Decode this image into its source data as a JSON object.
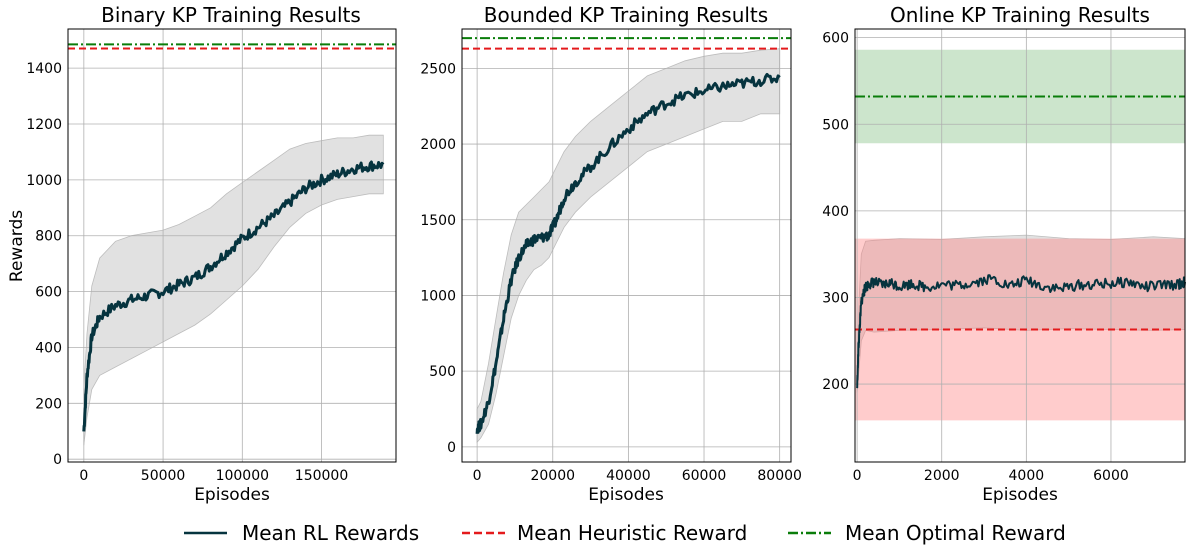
{
  "colors": {
    "rl": "#06343f",
    "heuristic": "#e41a1c",
    "optimal": "#0a7d0a",
    "band_gray": "#c8c8c8",
    "band_green": "#7fbf7f",
    "band_red": "#ff8080",
    "grid": "#b0b0b0"
  },
  "legend": {
    "placement": "bottom-center",
    "items": [
      {
        "label": "Mean RL Rewards",
        "style": "solid",
        "color_key": "rl"
      },
      {
        "label": "Mean Heuristic Reward",
        "style": "dashed",
        "color_key": "heuristic"
      },
      {
        "label": "Mean Optimal Reward",
        "style": "dashdot",
        "color_key": "optimal"
      }
    ]
  },
  "chart_data": [
    {
      "type": "line",
      "title": "Binary KP Training Results",
      "xlabel": "Episodes",
      "ylabel": "Rewards",
      "xlim": [
        -10000,
        197000
      ],
      "ylim": [
        -10,
        1540
      ],
      "xticks": [
        0,
        50000,
        100000,
        150000
      ],
      "yticks": [
        0,
        200,
        400,
        600,
        800,
        1000,
        1200,
        1400
      ],
      "grid": true,
      "heuristic": 1470,
      "optimal": 1485,
      "series": [
        {
          "role": "mean",
          "x": [
            0,
            2000,
            5000,
            10000,
            20000,
            30000,
            40000,
            50000,
            60000,
            70000,
            80000,
            90000,
            100000,
            110000,
            120000,
            130000,
            140000,
            150000,
            160000,
            170000,
            180000,
            189000
          ],
          "y": [
            100,
            300,
            440,
            510,
            550,
            570,
            585,
            600,
            625,
            650,
            690,
            740,
            790,
            830,
            870,
            920,
            970,
            1000,
            1020,
            1040,
            1050,
            1055
          ]
        }
      ],
      "bands": [
        {
          "color_key": "band_gray",
          "x": [
            0,
            2000,
            5000,
            10000,
            20000,
            30000,
            40000,
            50000,
            60000,
            70000,
            80000,
            90000,
            100000,
            110000,
            120000,
            130000,
            140000,
            150000,
            160000,
            170000,
            180000,
            189000
          ],
          "lower": [
            50,
            150,
            250,
            300,
            330,
            360,
            390,
            420,
            450,
            480,
            520,
            570,
            620,
            680,
            760,
            830,
            880,
            910,
            930,
            940,
            950,
            950
          ],
          "upper": [
            250,
            450,
            620,
            720,
            780,
            800,
            810,
            820,
            840,
            870,
            900,
            950,
            990,
            1030,
            1070,
            1110,
            1130,
            1140,
            1150,
            1150,
            1160,
            1160
          ]
        }
      ]
    },
    {
      "type": "line",
      "title": "Bounded KP Training Results",
      "xlabel": "Episodes",
      "ylabel": "",
      "xlim": [
        -4000,
        83000
      ],
      "ylim": [
        -100,
        2760
      ],
      "xticks": [
        0,
        20000,
        40000,
        60000,
        80000
      ],
      "yticks": [
        0,
        500,
        1000,
        1500,
        2000,
        2500
      ],
      "grid": true,
      "heuristic": 2630,
      "optimal": 2700,
      "series": [
        {
          "role": "mean",
          "x": [
            0,
            1000,
            3000,
            5000,
            7000,
            9000,
            11000,
            13000,
            15000,
            17000,
            19000,
            21000,
            23000,
            26000,
            30000,
            35000,
            40000,
            45000,
            50000,
            55000,
            60000,
            65000,
            70000,
            75000,
            80000
          ],
          "y": [
            120,
            150,
            300,
            550,
            850,
            1100,
            1250,
            1330,
            1370,
            1380,
            1400,
            1500,
            1650,
            1750,
            1850,
            1980,
            2100,
            2200,
            2270,
            2320,
            2350,
            2380,
            2400,
            2420,
            2440
          ]
        }
      ],
      "bands": [
        {
          "color_key": "band_gray",
          "x": [
            0,
            1000,
            3000,
            5000,
            7000,
            9000,
            11000,
            13000,
            15000,
            17000,
            19000,
            21000,
            23000,
            26000,
            30000,
            35000,
            40000,
            45000,
            50000,
            55000,
            60000,
            65000,
            70000,
            75000,
            80000
          ],
          "lower": [
            30,
            60,
            150,
            350,
            600,
            850,
            1000,
            1100,
            1170,
            1200,
            1250,
            1350,
            1450,
            1550,
            1650,
            1750,
            1850,
            1950,
            2000,
            2050,
            2100,
            2150,
            2150,
            2200,
            2200
          ],
          "upper": [
            250,
            300,
            550,
            850,
            1150,
            1400,
            1550,
            1600,
            1650,
            1700,
            1750,
            1850,
            1950,
            2050,
            2150,
            2250,
            2350,
            2450,
            2500,
            2550,
            2580,
            2600,
            2600,
            2620,
            2630
          ]
        }
      ]
    },
    {
      "type": "line",
      "title": "Online KP Training Results",
      "xlabel": "Episodes",
      "ylabel": "",
      "xlim": [
        -50,
        7750
      ],
      "ylim": [
        110,
        610
      ],
      "xticks": [
        0,
        2000,
        4000,
        6000
      ],
      "yticks": [
        200,
        300,
        400,
        500,
        600
      ],
      "grid": true,
      "heuristic": 263,
      "optimal": 532,
      "series": [
        {
          "role": "mean",
          "x": [
            0,
            30,
            60,
            100,
            150,
            200,
            300,
            400,
            600,
            800,
            1000,
            1300,
            1600,
            2000,
            2400,
            2800,
            3200,
            3600,
            4000,
            4400,
            4800,
            5200,
            5600,
            6000,
            6400,
            6800,
            7200,
            7600,
            7750
          ],
          "y": [
            195,
            240,
            265,
            295,
            305,
            312,
            316,
            318,
            314,
            317,
            313,
            316,
            312,
            315,
            314,
            318,
            322,
            313,
            320,
            313,
            310,
            314,
            315,
            316,
            318,
            312,
            314,
            315,
            318
          ]
        }
      ],
      "bands": [
        {
          "color_key": "band_gray",
          "x": [
            0,
            50,
            100,
            200,
            400,
            1000,
            2000,
            3000,
            4000,
            5000,
            6000,
            7000,
            7750
          ],
          "lower": [
            190,
            220,
            250,
            262,
            260,
            262,
            263,
            265,
            262,
            264,
            263,
            262,
            263
          ],
          "upper": [
            200,
            300,
            350,
            365,
            366,
            368,
            367,
            370,
            372,
            368,
            367,
            370,
            368
          ]
        },
        {
          "color_key": "band_green",
          "x": [
            -50,
            7750
          ],
          "lower": [
            478,
            478
          ],
          "upper": [
            586,
            586
          ]
        },
        {
          "color_key": "band_red",
          "x": [
            -50,
            7750
          ],
          "lower": [
            158,
            158
          ],
          "upper": [
            368,
            368
          ]
        }
      ]
    }
  ]
}
